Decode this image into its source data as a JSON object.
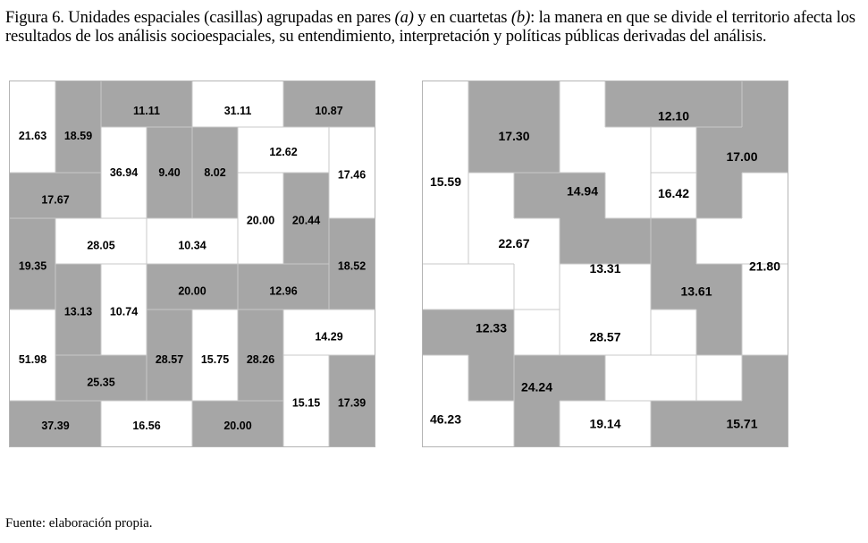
{
  "caption": {
    "p1": "Figura 6. Unidades espaciales (casillas) agrupadas en pares ",
    "a": "(a)",
    "p2": " y en cuartetas ",
    "b": "(b)",
    "p3": ": la manera en que se divide el territorio afecta los resultados de los análisis socioespaciales, su entendimiento, interpretación y políticas públicas derivadas del análisis."
  },
  "source": "Fuente: elaboración propia.",
  "colors": {
    "gray": "#a6a6a6",
    "white": "#ffffff",
    "line": "#c8c8c8",
    "border": "#b4b4b4"
  },
  "grid_a": {
    "zones": [
      {
        "fill": "white",
        "cells": [
          [
            0,
            0
          ],
          [
            0,
            1
          ]
        ],
        "label": "21.63",
        "at": [
          0.5,
          1.2
        ]
      },
      {
        "fill": "gray",
        "cells": [
          [
            1,
            0
          ],
          [
            1,
            1
          ]
        ],
        "label": "18.59",
        "at": [
          1.5,
          1.2
        ]
      },
      {
        "fill": "gray",
        "cells": [
          [
            2,
            0
          ],
          [
            3,
            0
          ]
        ],
        "label": "11.11",
        "at": [
          3.0,
          0.65
        ]
      },
      {
        "fill": "white",
        "cells": [
          [
            4,
            0
          ],
          [
            5,
            0
          ]
        ],
        "label": "31.11",
        "at": [
          5.0,
          0.65
        ]
      },
      {
        "fill": "gray",
        "cells": [
          [
            6,
            0
          ],
          [
            7,
            0
          ]
        ],
        "label": "10.87",
        "at": [
          7.0,
          0.65
        ]
      },
      {
        "fill": "white",
        "cells": [
          [
            2,
            1
          ],
          [
            2,
            2
          ]
        ],
        "label": "36.94",
        "at": [
          2.5,
          2.0
        ]
      },
      {
        "fill": "gray",
        "cells": [
          [
            3,
            1
          ],
          [
            3,
            2
          ]
        ],
        "label": "9.40",
        "at": [
          3.5,
          2.0
        ]
      },
      {
        "fill": "gray",
        "cells": [
          [
            4,
            1
          ],
          [
            4,
            2
          ]
        ],
        "label": "8.02",
        "at": [
          4.5,
          2.0
        ]
      },
      {
        "fill": "white",
        "cells": [
          [
            5,
            1
          ],
          [
            6,
            1
          ]
        ],
        "label": "12.62",
        "at": [
          6.0,
          1.55
        ]
      },
      {
        "fill": "white",
        "cells": [
          [
            7,
            1
          ],
          [
            7,
            2
          ]
        ],
        "label": "17.46",
        "at": [
          7.5,
          2.05
        ]
      },
      {
        "fill": "gray",
        "cells": [
          [
            0,
            2
          ],
          [
            1,
            2
          ]
        ],
        "label": "17.67",
        "at": [
          1.0,
          2.6
        ]
      },
      {
        "fill": "white",
        "cells": [
          [
            5,
            2
          ],
          [
            5,
            3
          ]
        ],
        "label": "20.00",
        "at": [
          5.5,
          3.05
        ]
      },
      {
        "fill": "gray",
        "cells": [
          [
            6,
            2
          ],
          [
            6,
            3
          ]
        ],
        "label": "20.44",
        "at": [
          6.5,
          3.05
        ]
      },
      {
        "fill": "gray",
        "cells": [
          [
            0,
            3
          ],
          [
            0,
            4
          ]
        ],
        "label": "19.35",
        "at": [
          0.5,
          4.05
        ]
      },
      {
        "fill": "white",
        "cells": [
          [
            1,
            3
          ],
          [
            2,
            3
          ]
        ],
        "label": "28.05",
        "at": [
          2.0,
          3.6
        ]
      },
      {
        "fill": "white",
        "cells": [
          [
            3,
            3
          ],
          [
            4,
            3
          ]
        ],
        "label": "10.34",
        "at": [
          4.0,
          3.6
        ]
      },
      {
        "fill": "gray",
        "cells": [
          [
            7,
            3
          ],
          [
            7,
            4
          ]
        ],
        "label": "18.52",
        "at": [
          7.5,
          4.05
        ]
      },
      {
        "fill": "gray",
        "cells": [
          [
            1,
            4
          ],
          [
            1,
            5
          ]
        ],
        "label": "13.13",
        "at": [
          1.5,
          5.05
        ]
      },
      {
        "fill": "white",
        "cells": [
          [
            2,
            4
          ],
          [
            2,
            5
          ]
        ],
        "label": "10.74",
        "at": [
          2.5,
          5.05
        ]
      },
      {
        "fill": "gray",
        "cells": [
          [
            3,
            4
          ],
          [
            4,
            4
          ]
        ],
        "label": "20.00",
        "at": [
          4.0,
          4.6
        ]
      },
      {
        "fill": "gray",
        "cells": [
          [
            5,
            4
          ],
          [
            6,
            4
          ]
        ],
        "label": "12.96",
        "at": [
          6.0,
          4.6
        ]
      },
      {
        "fill": "white",
        "cells": [
          [
            0,
            5
          ],
          [
            0,
            6
          ]
        ],
        "label": "51.98",
        "at": [
          0.5,
          6.1
        ]
      },
      {
        "fill": "gray",
        "cells": [
          [
            3,
            5
          ],
          [
            3,
            6
          ]
        ],
        "label": "28.57",
        "at": [
          3.5,
          6.1
        ]
      },
      {
        "fill": "white",
        "cells": [
          [
            4,
            5
          ],
          [
            4,
            6
          ]
        ],
        "label": "15.75",
        "at": [
          4.5,
          6.1
        ]
      },
      {
        "fill": "gray",
        "cells": [
          [
            5,
            5
          ],
          [
            5,
            6
          ]
        ],
        "label": "28.26",
        "at": [
          5.5,
          6.1
        ]
      },
      {
        "fill": "white",
        "cells": [
          [
            6,
            5
          ],
          [
            7,
            5
          ]
        ],
        "label": "14.29",
        "at": [
          7.0,
          5.6
        ]
      },
      {
        "fill": "gray",
        "cells": [
          [
            1,
            6
          ],
          [
            2,
            6
          ]
        ],
        "label": "25.35",
        "at": [
          2.0,
          6.6
        ]
      },
      {
        "fill": "white",
        "cells": [
          [
            6,
            6
          ],
          [
            6,
            7
          ]
        ],
        "label": "15.15",
        "at": [
          6.5,
          7.05
        ]
      },
      {
        "fill": "gray",
        "cells": [
          [
            7,
            6
          ],
          [
            7,
            7
          ]
        ],
        "label": "17.39",
        "at": [
          7.5,
          7.05
        ]
      },
      {
        "fill": "gray",
        "cells": [
          [
            0,
            7
          ],
          [
            1,
            7
          ]
        ],
        "label": "37.39",
        "at": [
          1.0,
          7.55
        ]
      },
      {
        "fill": "white",
        "cells": [
          [
            2,
            7
          ],
          [
            3,
            7
          ]
        ],
        "label": "16.56",
        "at": [
          3.0,
          7.55
        ]
      },
      {
        "fill": "gray",
        "cells": [
          [
            4,
            7
          ],
          [
            5,
            7
          ]
        ],
        "label": "20.00",
        "at": [
          5.0,
          7.55
        ]
      }
    ]
  },
  "grid_b": {
    "zones": [
      {
        "fill": "white",
        "cells": [
          [
            0,
            0
          ],
          [
            0,
            1
          ],
          [
            0,
            2
          ],
          [
            0,
            3
          ]
        ],
        "label": "15.59",
        "at": [
          0.5,
          2.2
        ]
      },
      {
        "fill": "gray",
        "cells": [
          [
            1,
            0
          ],
          [
            2,
            0
          ],
          [
            1,
            1
          ],
          [
            2,
            1
          ]
        ],
        "label": "17.30",
        "at": [
          2.0,
          1.2
        ]
      },
      {
        "fill": "white",
        "cells": [
          [
            3,
            0
          ],
          [
            3,
            1
          ],
          [
            4,
            1
          ],
          [
            4,
            2
          ]
        ],
        "label": "",
        "at": [
          3.5,
          1.0
        ]
      },
      {
        "fill": "gray",
        "cells": [
          [
            4,
            0
          ],
          [
            5,
            0
          ],
          [
            6,
            0
          ],
          [
            5,
            1
          ]
        ],
        "label": "12.10",
        "at": [
          5.5,
          0.75
        ]
      },
      {
        "fill": "gray",
        "cells": [
          [
            7,
            0
          ],
          [
            6,
            1
          ],
          [
            7,
            1
          ],
          [
            6,
            2
          ]
        ],
        "label": "17.00",
        "at": [
          7.0,
          1.65
        ]
      },
      {
        "fill": "white",
        "cells": [
          [
            1,
            2
          ],
          [
            1,
            3
          ],
          [
            2,
            3
          ],
          [
            2,
            4
          ]
        ],
        "label": "22.67",
        "at": [
          2.0,
          3.55
        ]
      },
      {
        "fill": "gray",
        "cells": [
          [
            2,
            2
          ],
          [
            3,
            2
          ],
          [
            3,
            3
          ],
          [
            4,
            3
          ]
        ],
        "label": "14.94",
        "at": [
          3.5,
          2.4
        ]
      },
      {
        "fill": "white",
        "cells": [
          [
            5,
            2
          ],
          [
            7,
            2
          ],
          [
            6,
            3
          ],
          [
            7,
            3
          ]
        ],
        "label": "21.80",
        "at": [
          7.5,
          4.05
        ]
      },
      {
        "fill": "gray",
        "cells": [
          [
            5,
            3
          ],
          [
            5,
            4
          ],
          [
            6,
            4
          ],
          [
            6,
            5
          ]
        ],
        "label": "13.61",
        "at": [
          6.0,
          4.6
        ]
      },
      {
        "fill": "white",
        "cells": [
          [
            3,
            4
          ],
          [
            4,
            4
          ],
          [
            3,
            5
          ],
          [
            4,
            5
          ]
        ],
        "label": "13.31",
        "at": [
          4.0,
          4.1
        ]
      },
      {
        "fill": "white",
        "cells": [
          [
            7,
            4
          ],
          [
            7,
            5
          ],
          [
            6,
            6
          ],
          [
            6,
            7
          ]
        ],
        "label": "",
        "at": [
          7.0,
          6.0
        ]
      },
      {
        "fill": "gray",
        "cells": [
          [
            0,
            5
          ],
          [
            1,
            5
          ],
          [
            2,
            5
          ],
          [
            1,
            6
          ]
        ],
        "label": "12.33",
        "at": [
          1.5,
          5.4
        ]
      },
      {
        "fill": "white",
        "cells": [
          [
            0,
            6
          ],
          [
            0,
            7
          ],
          [
            1,
            7
          ],
          [
            2,
            5
          ]
        ],
        "label": "46.23",
        "at": [
          0.5,
          7.4
        ]
      },
      {
        "fill": "white",
        "cells": [
          [
            3,
            6
          ],
          [
            4,
            6
          ],
          [
            5,
            6
          ],
          [
            5,
            7
          ]
        ],
        "label": "28.57",
        "at": [
          4.0,
          5.6
        ]
      },
      {
        "fill": "gray",
        "cells": [
          [
            2,
            6
          ],
          [
            3,
            6
          ],
          [
            2,
            7
          ],
          [
            4,
            7
          ]
        ],
        "label": "24.24",
        "at": [
          2.5,
          6.7
        ]
      },
      {
        "fill": "white",
        "cells": [
          [
            3,
            7
          ],
          [
            4,
            7
          ]
        ],
        "label": "19.14",
        "at": [
          4.0,
          7.5
        ]
      },
      {
        "fill": "gray",
        "cells": [
          [
            5,
            7
          ],
          [
            6,
            7
          ],
          [
            7,
            6
          ],
          [
            7,
            7
          ]
        ],
        "label": "15.71",
        "at": [
          7.0,
          7.5
        ]
      },
      {
        "fill": "white",
        "cells": [
          [
            5,
            1
          ]
        ],
        "label": "16.42",
        "at": [
          5.5,
          2.45
        ]
      }
    ]
  }
}
